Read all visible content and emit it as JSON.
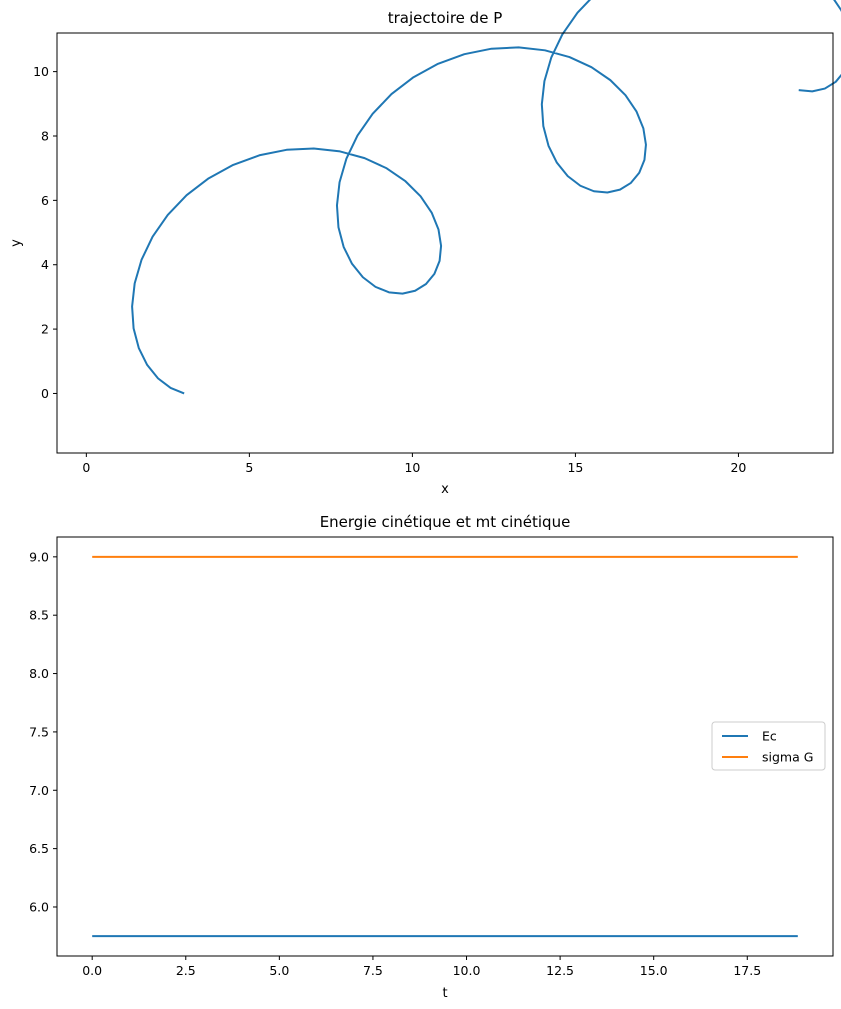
{
  "chart_data": [
    {
      "type": "line",
      "title": "trajectoire de P",
      "xlabel": "x",
      "ylabel": "y",
      "xlim": [
        -0.9,
        22.9
      ],
      "ylim": [
        -1.85,
        11.2
      ],
      "xticks": [
        0,
        5,
        10,
        15,
        20
      ],
      "xtick_labels": [
        "0",
        "5",
        "10",
        "15",
        "20"
      ],
      "yticks": [
        0,
        2,
        4,
        6,
        8,
        10
      ],
      "ytick_labels": [
        "0",
        "2",
        "4",
        "6",
        "8",
        "10"
      ],
      "grid": false,
      "series": [
        {
          "color": "#1f77b4",
          "curve": "trochoid",
          "x_of_t": "t - 3*sin(t) + 3",
          "y_of_t": "0.5*t - 3*cos(t) + 3",
          "t_range": [
            0,
            18.85
          ],
          "samples": 90
        }
      ]
    },
    {
      "type": "line",
      "title": "Energie cinétique et mt cinétique",
      "xlabel": "t",
      "ylabel": "",
      "xlim": [
        -0.94,
        19.79
      ],
      "ylim": [
        5.58,
        9.17
      ],
      "xticks": [
        0,
        2.5,
        5,
        7.5,
        10,
        12.5,
        15,
        17.5
      ],
      "xtick_labels": [
        "0.0",
        "2.5",
        "5.0",
        "7.5",
        "10.0",
        "12.5",
        "15.0",
        "17.5"
      ],
      "yticks": [
        6.0,
        6.5,
        7.0,
        7.5,
        8.0,
        8.5,
        9.0
      ],
      "ytick_labels": [
        "6.0",
        "6.5",
        "7.0",
        "7.5",
        "8.0",
        "8.5",
        "9.0"
      ],
      "grid": false,
      "legend_position": "center-right",
      "series": [
        {
          "name": "Ec",
          "color": "#1f77b4",
          "x": [
            0,
            18.85
          ],
          "values": [
            5.75,
            5.75
          ]
        },
        {
          "name": "sigma G",
          "color": "#ff7f0e",
          "x": [
            0,
            18.85
          ],
          "values": [
            9.0,
            9.0
          ]
        }
      ]
    }
  ]
}
